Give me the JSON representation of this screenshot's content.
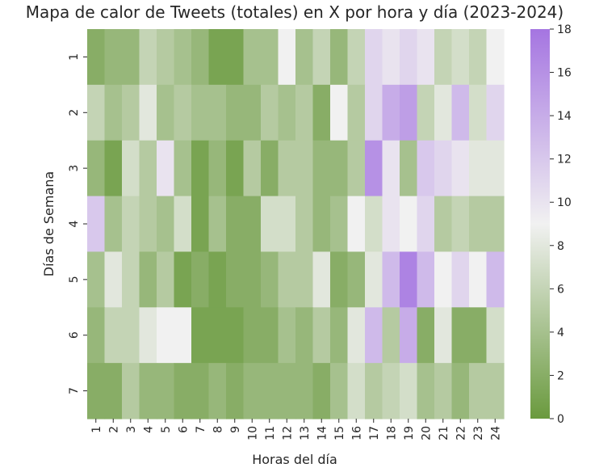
{
  "chart_data": {
    "type": "heatmap",
    "title": "Mapa de calor de Tweets (totales) en X por hora y día (2023-2024)",
    "xlabel": "Horas del día",
    "ylabel": "Días de Semana",
    "x_categories": [
      "1",
      "2",
      "3",
      "4",
      "5",
      "6",
      "7",
      "8",
      "9",
      "10",
      "11",
      "12",
      "13",
      "14",
      "15",
      "16",
      "17",
      "18",
      "19",
      "20",
      "21",
      "22",
      "23",
      "24"
    ],
    "y_categories": [
      "1",
      "2",
      "3",
      "4",
      "5",
      "6",
      "7"
    ],
    "values": [
      [
        2,
        3,
        3,
        6,
        5,
        4,
        3,
        1,
        1,
        4,
        4,
        9,
        4,
        6,
        3,
        6,
        11,
        10,
        11,
        10,
        6,
        7,
        6,
        9
      ],
      [
        6,
        4,
        5,
        8,
        4,
        5,
        4,
        4,
        3,
        3,
        5,
        4,
        5,
        2,
        9,
        5,
        11,
        14,
        15,
        6,
        8,
        13,
        7,
        11
      ],
      [
        3,
        1,
        7,
        5,
        10,
        4,
        1,
        3,
        1,
        5,
        2,
        5,
        5,
        3,
        3,
        5,
        16,
        10,
        4,
        12,
        11,
        10,
        8,
        8
      ],
      [
        12,
        4,
        6,
        5,
        4,
        7,
        1,
        4,
        2,
        2,
        7,
        7,
        5,
        3,
        4,
        9,
        7,
        10,
        9,
        11,
        5,
        6,
        5,
        5
      ],
      [
        4,
        8,
        6,
        3,
        5,
        1,
        2,
        1,
        2,
        2,
        3,
        5,
        5,
        8,
        2,
        3,
        8,
        13,
        17,
        13,
        9,
        11,
        9,
        13
      ],
      [
        3,
        6,
        6,
        8,
        9,
        9,
        1,
        1,
        1,
        2,
        2,
        4,
        3,
        5,
        3,
        8,
        13,
        5,
        14,
        2,
        8,
        2,
        2,
        7
      ],
      [
        2,
        2,
        5,
        3,
        3,
        2,
        2,
        3,
        2,
        3,
        3,
        3,
        3,
        2,
        4,
        7,
        5,
        6,
        7,
        4,
        5,
        3,
        5,
        5
      ]
    ],
    "colorbar": {
      "min": 0,
      "max": 18,
      "ticks": [
        0,
        2,
        4,
        6,
        8,
        10,
        12,
        14,
        16,
        18
      ],
      "colors": [
        "#6a9a3e",
        "#f1f1f1",
        "#a575e1"
      ]
    }
  }
}
